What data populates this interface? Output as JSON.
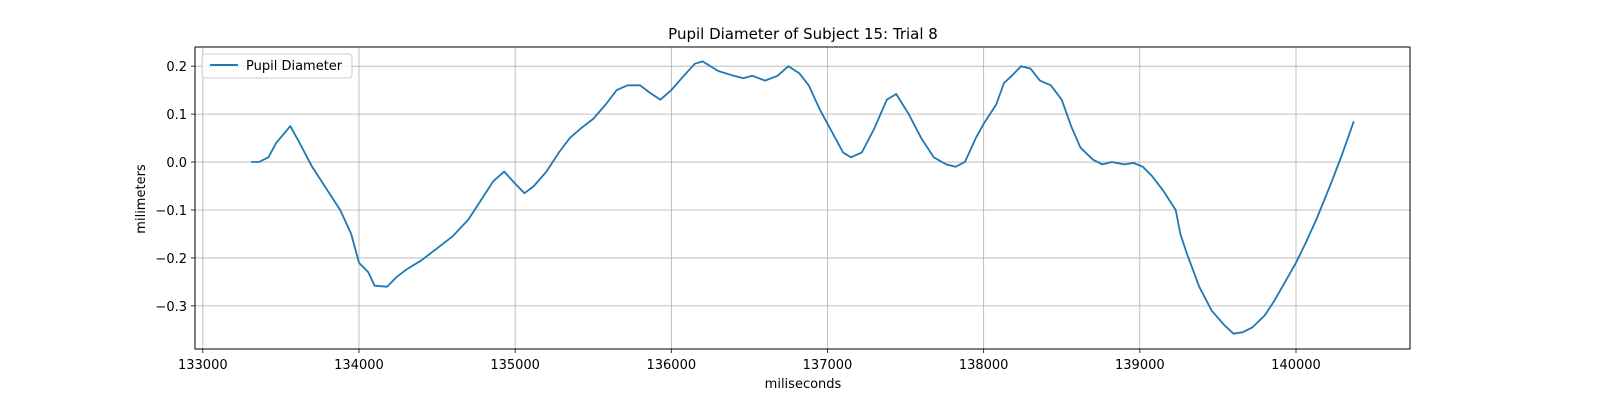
{
  "chart_data": {
    "type": "line",
    "title": "Pupil Diameter of Subject 15: Trial 8",
    "xlabel": "miliseconds",
    "ylabel": "milimeters",
    "xlim": [
      132950,
      140730
    ],
    "ylim": [
      -0.39,
      0.24
    ],
    "xticks": [
      133000,
      134000,
      135000,
      136000,
      137000,
      138000,
      139000,
      140000
    ],
    "xtick_labels": [
      "133000",
      "134000",
      "135000",
      "136000",
      "137000",
      "138000",
      "139000",
      "140000"
    ],
    "yticks": [
      -0.3,
      -0.2,
      -0.1,
      0.0,
      0.1,
      0.2
    ],
    "ytick_labels": [
      "−0.3",
      "−0.2",
      "−0.1",
      "0.0",
      "0.1",
      "0.2"
    ],
    "grid": true,
    "legend_position": "top-left",
    "series": [
      {
        "name": "Pupil Diameter",
        "color": "#1f77b4",
        "points": [
          [
            133310,
            0.0
          ],
          [
            133360,
            0.0
          ],
          [
            133420,
            0.01
          ],
          [
            133470,
            0.04
          ],
          [
            133560,
            0.075
          ],
          [
            133620,
            0.04
          ],
          [
            133700,
            -0.01
          ],
          [
            133800,
            -0.06
          ],
          [
            133880,
            -0.1
          ],
          [
            133950,
            -0.15
          ],
          [
            134000,
            -0.21
          ],
          [
            134060,
            -0.23
          ],
          [
            134100,
            -0.258
          ],
          [
            134180,
            -0.26
          ],
          [
            134240,
            -0.24
          ],
          [
            134300,
            -0.225
          ],
          [
            134400,
            -0.205
          ],
          [
            134500,
            -0.18
          ],
          [
            134600,
            -0.155
          ],
          [
            134700,
            -0.12
          ],
          [
            134760,
            -0.09
          ],
          [
            134800,
            -0.07
          ],
          [
            134860,
            -0.04
          ],
          [
            134930,
            -0.02
          ],
          [
            135000,
            -0.045
          ],
          [
            135060,
            -0.065
          ],
          [
            135120,
            -0.05
          ],
          [
            135200,
            -0.02
          ],
          [
            135280,
            0.02
          ],
          [
            135350,
            0.05
          ],
          [
            135420,
            0.07
          ],
          [
            135500,
            0.09
          ],
          [
            135580,
            0.12
          ],
          [
            135650,
            0.15
          ],
          [
            135720,
            0.16
          ],
          [
            135800,
            0.16
          ],
          [
            135860,
            0.145
          ],
          [
            135930,
            0.13
          ],
          [
            136000,
            0.15
          ],
          [
            136080,
            0.18
          ],
          [
            136150,
            0.205
          ],
          [
            136200,
            0.21
          ],
          [
            136300,
            0.19
          ],
          [
            136400,
            0.18
          ],
          [
            136460,
            0.175
          ],
          [
            136520,
            0.18
          ],
          [
            136600,
            0.17
          ],
          [
            136680,
            0.18
          ],
          [
            136750,
            0.2
          ],
          [
            136820,
            0.185
          ],
          [
            136880,
            0.16
          ],
          [
            136950,
            0.11
          ],
          [
            137050,
            0.05
          ],
          [
            137100,
            0.02
          ],
          [
            137150,
            0.01
          ],
          [
            137220,
            0.02
          ],
          [
            137300,
            0.07
          ],
          [
            137380,
            0.13
          ],
          [
            137440,
            0.142
          ],
          [
            137520,
            0.1
          ],
          [
            137600,
            0.05
          ],
          [
            137680,
            0.01
          ],
          [
            137760,
            -0.005
          ],
          [
            137820,
            -0.01
          ],
          [
            137880,
            0.0
          ],
          [
            137950,
            0.05
          ],
          [
            138000,
            0.08
          ],
          [
            138080,
            0.12
          ],
          [
            138130,
            0.165
          ],
          [
            138180,
            0.18
          ],
          [
            138240,
            0.2
          ],
          [
            138300,
            0.195
          ],
          [
            138360,
            0.17
          ],
          [
            138430,
            0.16
          ],
          [
            138500,
            0.13
          ],
          [
            138560,
            0.075
          ],
          [
            138620,
            0.03
          ],
          [
            138700,
            0.005
          ],
          [
            138760,
            -0.005
          ],
          [
            138820,
            0.0
          ],
          [
            138900,
            -0.005
          ],
          [
            138960,
            -0.002
          ],
          [
            139020,
            -0.01
          ],
          [
            139080,
            -0.03
          ],
          [
            139150,
            -0.06
          ],
          [
            139230,
            -0.1
          ],
          [
            139260,
            -0.15
          ],
          [
            139300,
            -0.19
          ],
          [
            139380,
            -0.26
          ],
          [
            139460,
            -0.31
          ],
          [
            139540,
            -0.34
          ],
          [
            139600,
            -0.358
          ],
          [
            139660,
            -0.355
          ],
          [
            139720,
            -0.345
          ],
          [
            139800,
            -0.32
          ],
          [
            139860,
            -0.29
          ],
          [
            139930,
            -0.25
          ],
          [
            140000,
            -0.21
          ],
          [
            140060,
            -0.17
          ],
          [
            140130,
            -0.12
          ],
          [
            140180,
            -0.08
          ],
          [
            140230,
            -0.04
          ],
          [
            140300,
            0.02
          ],
          [
            140370,
            0.085
          ]
        ]
      }
    ]
  }
}
